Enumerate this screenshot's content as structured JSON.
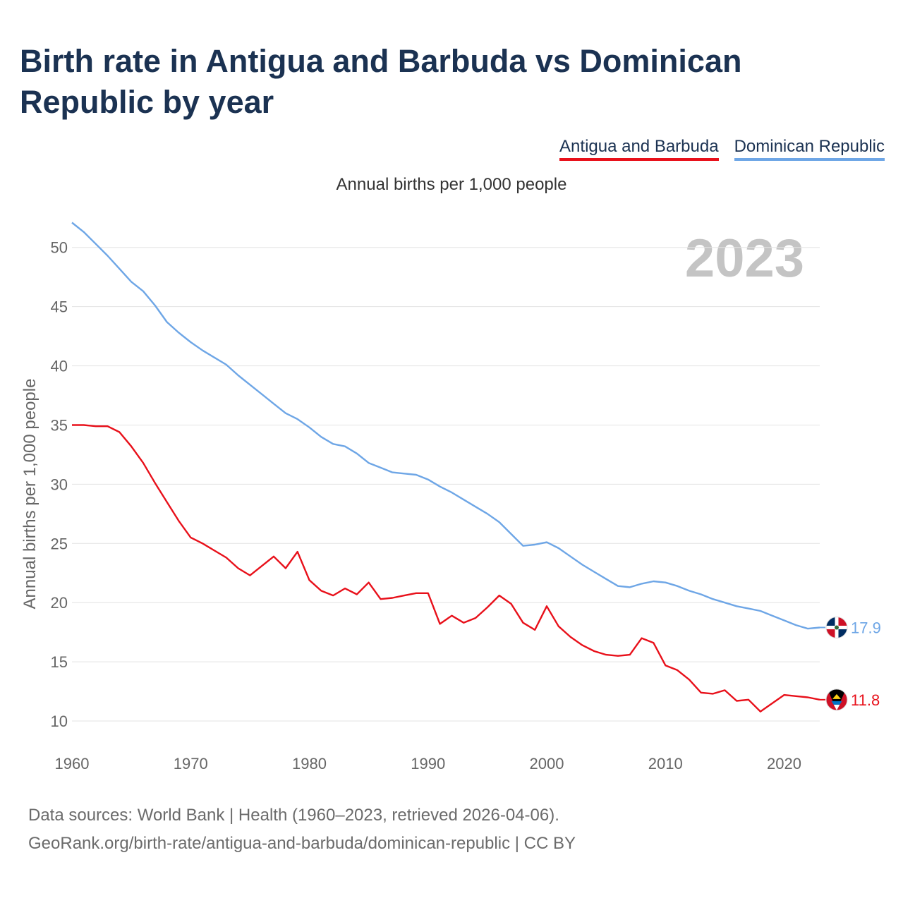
{
  "title": "Birth rate in Antigua and Barbuda vs Dominican Republic by year",
  "subtitle": "Annual births per 1,000 people",
  "legend": [
    {
      "label": "Antigua and Barbuda",
      "color": "#e8101a"
    },
    {
      "label": "Dominican Republic",
      "color": "#6ea6e6"
    }
  ],
  "year_watermark": "2023",
  "footer": {
    "line1": "Data sources: World Bank | Health (1960–2023, retrieved 2026-04-06).",
    "line2": "GeoRank.org/birth-rate/antigua-and-barbuda/dominican-republic | CC BY"
  },
  "chart_data": {
    "type": "line",
    "title": "Birth rate in Antigua and Barbuda vs Dominican Republic by year",
    "xlabel": "",
    "ylabel": "Annual births per 1,000 people",
    "xlim": [
      1960,
      2023
    ],
    "ylim": [
      7.5,
      53.5
    ],
    "x_ticks": [
      1960,
      1970,
      1980,
      1990,
      2000,
      2010,
      2020
    ],
    "y_ticks": [
      10,
      15,
      20,
      25,
      30,
      35,
      40,
      45,
      50
    ],
    "grid": true,
    "legend_position": "top-right",
    "series": [
      {
        "name": "Dominican Republic",
        "color": "#6ea6e6",
        "end_label": "17.9",
        "flag_icon": "dominican-republic-flag-icon",
        "x": [
          1960,
          1961,
          1962,
          1963,
          1964,
          1965,
          1966,
          1967,
          1968,
          1969,
          1970,
          1971,
          1972,
          1973,
          1974,
          1975,
          1976,
          1977,
          1978,
          1979,
          1980,
          1981,
          1982,
          1983,
          1984,
          1985,
          1986,
          1987,
          1988,
          1989,
          1990,
          1991,
          1992,
          1993,
          1994,
          1995,
          1996,
          1997,
          1998,
          1999,
          2000,
          2001,
          2002,
          2003,
          2004,
          2005,
          2006,
          2007,
          2008,
          2009,
          2010,
          2011,
          2012,
          2013,
          2014,
          2015,
          2016,
          2017,
          2018,
          2019,
          2020,
          2021,
          2022,
          2023
        ],
        "values": [
          52.1,
          51.3,
          50.3,
          49.3,
          48.2,
          47.1,
          46.3,
          45.1,
          43.7,
          42.8,
          42.0,
          41.3,
          40.7,
          40.1,
          39.2,
          38.4,
          37.6,
          36.8,
          36.0,
          35.5,
          34.8,
          34.0,
          33.4,
          33.2,
          32.6,
          31.8,
          31.4,
          31.0,
          30.9,
          30.8,
          30.4,
          29.8,
          29.3,
          28.7,
          28.1,
          27.5,
          26.8,
          25.8,
          24.8,
          24.9,
          25.1,
          24.6,
          23.9,
          23.2,
          22.6,
          22.0,
          21.4,
          21.3,
          21.6,
          21.8,
          21.7,
          21.4,
          21.0,
          20.7,
          20.3,
          20.0,
          19.7,
          19.5,
          19.3,
          18.9,
          18.5,
          18.1,
          17.8,
          17.9
        ]
      },
      {
        "name": "Antigua and Barbuda",
        "color": "#e8101a",
        "end_label": "11.8",
        "flag_icon": "antigua-and-barbuda-flag-icon",
        "x": [
          1960,
          1961,
          1962,
          1963,
          1964,
          1965,
          1966,
          1967,
          1968,
          1969,
          1970,
          1971,
          1972,
          1973,
          1974,
          1975,
          1976,
          1977,
          1978,
          1979,
          1980,
          1981,
          1982,
          1983,
          1984,
          1985,
          1986,
          1987,
          1988,
          1989,
          1990,
          1991,
          1992,
          1993,
          1994,
          1995,
          1996,
          1997,
          1998,
          1999,
          2000,
          2001,
          2002,
          2003,
          2004,
          2005,
          2006,
          2007,
          2008,
          2009,
          2010,
          2011,
          2012,
          2013,
          2014,
          2015,
          2016,
          2017,
          2018,
          2019,
          2020,
          2021,
          2022,
          2023
        ],
        "values": [
          35.0,
          35.0,
          34.9,
          34.9,
          34.4,
          33.2,
          31.8,
          30.1,
          28.5,
          26.9,
          25.5,
          25.0,
          24.4,
          23.8,
          22.9,
          22.3,
          23.1,
          23.9,
          22.9,
          24.3,
          21.9,
          21.0,
          20.6,
          21.2,
          20.7,
          21.7,
          20.3,
          20.4,
          20.6,
          20.8,
          20.8,
          18.2,
          18.9,
          18.3,
          18.7,
          19.6,
          20.6,
          19.9,
          18.3,
          17.7,
          19.7,
          18.0,
          17.1,
          16.4,
          15.9,
          15.6,
          15.5,
          15.6,
          17.0,
          16.6,
          14.7,
          14.3,
          13.5,
          12.4,
          12.3,
          12.6,
          11.7,
          11.8,
          10.8,
          11.5,
          12.2,
          12.1,
          12.0,
          11.8
        ]
      }
    ]
  }
}
